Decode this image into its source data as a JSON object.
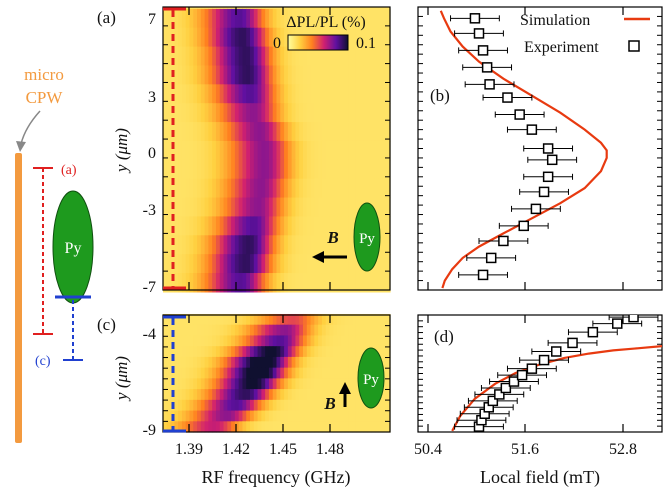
{
  "schematic": {
    "label_line1": "micro",
    "label_line2": "CPW",
    "marker_a": "(a)",
    "marker_c": "(c)",
    "py_label": "Py",
    "colors": {
      "cpw": "#f39a3f",
      "py": "#1e9a1e",
      "marker_a": "#e02020",
      "marker_c": "#2040d0"
    }
  },
  "panels": {
    "a": {
      "label": "(a)",
      "ylabel": "y (μm)",
      "yticks": [
        "7",
        "3",
        "0",
        "-3",
        "-7"
      ],
      "py_label": "Py",
      "b_label": "B"
    },
    "b": {
      "label": "(b)"
    },
    "c": {
      "label": "(c)",
      "ylabel": "y (μm)",
      "yticks": [
        "-4",
        "-9"
      ],
      "py_label": "Py",
      "b_label": "B"
    },
    "d": {
      "label": "(d)"
    }
  },
  "colorbar": {
    "title": "ΔPL/PL (%)",
    "min_label": "0",
    "max_label": "0.1",
    "colors": [
      "#ffffa0",
      "#ffd040",
      "#ff8020",
      "#d02070",
      "#6010a0",
      "#101030"
    ]
  },
  "axes": {
    "rf_ticks": [
      "1.39",
      "1.42",
      "1.45",
      "1.48"
    ],
    "rf_xlabel": "RF frequency (GHz)",
    "field_ticks": [
      "50.4",
      "51.6",
      "52.8"
    ],
    "field_xlabel": "Local field (mT)"
  },
  "chart_data": [
    {
      "panel": "a",
      "type": "heatmap",
      "xlabel": "RF frequency (GHz)",
      "ylabel": "y (μm)",
      "xlim": [
        1.365,
        1.51
      ],
      "ylim": [
        -7.4,
        7.6
      ],
      "color_range": [
        0,
        0.1
      ],
      "note": "resonance ridge (peak frequency per row, GHz) with peak ΔPL/PL (%)",
      "rows": [
        {
          "y": 7.0,
          "f_peak": 1.414,
          "peak": 0.07
        },
        {
          "y": 6.0,
          "f_peak": 1.416,
          "peak": 0.08
        },
        {
          "y": 5.0,
          "f_peak": 1.418,
          "peak": 0.08
        },
        {
          "y": 4.0,
          "f_peak": 1.419,
          "peak": 0.08
        },
        {
          "y": 3.0,
          "f_peak": 1.421,
          "peak": 0.07
        },
        {
          "y": 2.0,
          "f_peak": 1.423,
          "peak": 0.06
        },
        {
          "y": 1.0,
          "f_peak": 1.427,
          "peak": 0.06
        },
        {
          "y": 0.0,
          "f_peak": 1.43,
          "peak": 0.06
        },
        {
          "y": -1.0,
          "f_peak": 1.43,
          "peak": 0.06
        },
        {
          "y": -2.0,
          "f_peak": 1.428,
          "peak": 0.06
        },
        {
          "y": -3.0,
          "f_peak": 1.426,
          "peak": 0.06
        },
        {
          "y": -4.0,
          "f_peak": 1.423,
          "peak": 0.07
        },
        {
          "y": -5.0,
          "f_peak": 1.42,
          "peak": 0.08
        },
        {
          "y": -6.0,
          "f_peak": 1.418,
          "peak": 0.08
        },
        {
          "y": -7.0,
          "f_peak": 1.415,
          "peak": 0.07
        }
      ]
    },
    {
      "panel": "b",
      "type": "scatter",
      "xlabel": "Local field (mT)",
      "ylabel": "y (μm)",
      "xlim": [
        50.3,
        53.3
      ],
      "ylim": [
        -7.4,
        7.6
      ],
      "series": [
        {
          "name": "Simulation",
          "type": "line",
          "color": "#e83a10",
          "x": [
            50.58,
            50.62,
            50.7,
            50.85,
            51.05,
            51.35,
            51.7,
            52.05,
            52.35,
            52.55,
            52.62,
            52.62,
            52.55,
            52.35,
            52.05,
            51.7,
            51.35,
            51.05,
            50.85,
            50.72,
            50.63,
            50.6
          ],
          "y": [
            7.4,
            7.0,
            6.3,
            5.5,
            4.7,
            3.8,
            2.9,
            2.0,
            1.1,
            0.4,
            0.0,
            -0.4,
            -1.1,
            -2.0,
            -2.8,
            -3.6,
            -4.4,
            -5.1,
            -5.7,
            -6.3,
            -6.9,
            -7.3
          ]
        },
        {
          "name": "Experiment",
          "type": "scatter",
          "x": [
            51.0,
            51.05,
            51.1,
            51.15,
            51.18,
            51.4,
            51.55,
            51.7,
            51.9,
            51.95,
            51.9,
            51.85,
            51.75,
            51.6,
            51.35,
            51.2,
            51.1
          ],
          "y": [
            7.0,
            6.2,
            5.3,
            4.4,
            3.5,
            2.8,
            1.9,
            1.1,
            0.1,
            -0.5,
            -1.4,
            -2.2,
            -3.1,
            -4.0,
            -4.8,
            -5.7,
            -6.6
          ],
          "xerr": 0.3
        }
      ]
    },
    {
      "panel": "c",
      "type": "heatmap",
      "xlabel": "RF frequency (GHz)",
      "ylabel": "y (μm)",
      "xlim": [
        1.365,
        1.51
      ],
      "ylim": [
        -9.15,
        -3.7
      ],
      "color_range": [
        0,
        0.1
      ],
      "note": "resonance ridge (peak frequency per row, GHz) with peak ΔPL/PL (%)",
      "rows": [
        {
          "y": -3.9,
          "f_peak": 1.448,
          "peak": 0.04
        },
        {
          "y": -4.4,
          "f_peak": 1.443,
          "peak": 0.06
        },
        {
          "y": -4.9,
          "f_peak": 1.44,
          "peak": 0.07
        },
        {
          "y": -5.4,
          "f_peak": 1.435,
          "peak": 0.09
        },
        {
          "y": -5.9,
          "f_peak": 1.43,
          "peak": 0.1
        },
        {
          "y": -6.4,
          "f_peak": 1.427,
          "peak": 0.1
        },
        {
          "y": -6.9,
          "f_peak": 1.423,
          "peak": 0.09
        },
        {
          "y": -7.4,
          "f_peak": 1.418,
          "peak": 0.08
        },
        {
          "y": -7.9,
          "f_peak": 1.412,
          "peak": 0.07
        },
        {
          "y": -8.4,
          "f_peak": 1.406,
          "peak": 0.06
        },
        {
          "y": -8.9,
          "f_peak": 1.398,
          "peak": 0.05
        }
      ]
    },
    {
      "panel": "d",
      "type": "scatter",
      "xlabel": "Local field (mT)",
      "ylabel": "y (μm)",
      "xlim": [
        50.3,
        53.3
      ],
      "ylim": [
        -9.15,
        -3.7
      ],
      "series": [
        {
          "name": "Simulation",
          "type": "line",
          "color": "#e83a10",
          "x": [
            50.72,
            50.82,
            51.0,
            51.25,
            51.5,
            51.8,
            52.1,
            52.4,
            52.7,
            53.0,
            53.3
          ],
          "y": [
            -9.1,
            -8.4,
            -7.6,
            -6.9,
            -6.4,
            -6.0,
            -5.7,
            -5.5,
            -5.35,
            -5.25,
            -5.15
          ]
        },
        {
          "name": "Experiment",
          "type": "scatter",
          "x": [
            51.05,
            51.08,
            51.12,
            51.17,
            51.22,
            51.3,
            51.38,
            51.48,
            51.58,
            51.7,
            51.85,
            52.0,
            52.2,
            52.45,
            52.75,
            52.95
          ],
          "y": [
            -8.9,
            -8.6,
            -8.3,
            -8.0,
            -7.7,
            -7.4,
            -7.1,
            -6.8,
            -6.5,
            -6.2,
            -5.8,
            -5.4,
            -5.0,
            -4.5,
            -4.1,
            -3.8
          ],
          "xerr": 0.3
        }
      ]
    }
  ]
}
